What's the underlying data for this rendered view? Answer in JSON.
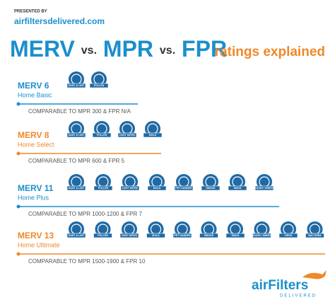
{
  "header": {
    "presented_by": "PRESENTED BY",
    "brand": "airfiltersdelivered.com"
  },
  "title": {
    "merv": "MERV",
    "vs1": "vs.",
    "mpr": "MPR",
    "vs2": "vs.",
    "fpr": "FPR",
    "tagline": "ratings explained"
  },
  "rows": [
    {
      "name": "MERV 6",
      "subtitle": "Home Basic",
      "color": "#1b8fcc",
      "filters": [
        "DUST & LINT",
        "POLLEN"
      ],
      "comparable": "COMPARABLE TO MPR 300 & FPR N/A"
    },
    {
      "name": "MERV 8",
      "subtitle": "Home Select",
      "color": "#f0882a",
      "filters": [
        "DUST & LINT",
        "POLLEN",
        "DUST MITES",
        "MOLD"
      ],
      "comparable": "COMPARABLE TO MPR 600 & FPR 5"
    },
    {
      "name": "MERV 11",
      "subtitle": "Home Plus",
      "color": "#1b8fcc",
      "filters": [
        "DUST & LINT",
        "POLLEN",
        "DUST MITES",
        "MOLD",
        "PET DANDER",
        "SMOKE",
        "SMOG",
        "COUGH / SNEEZE"
      ],
      "comparable": "COMPARABLE TO MPR 1000-1200 & FPR 7"
    },
    {
      "name": "MERV 13",
      "subtitle": "Home Ultimate",
      "color": "#f0882a",
      "filters": [
        "DUST & LINT",
        "POLLEN",
        "DUST MITES",
        "MOLD",
        "PET DANDER",
        "SMOKE",
        "SMOG",
        "COUGH / SNEEZE",
        "VIRUS",
        "BACTERIA"
      ],
      "comparable": "COMPARABLE TO MPR 1500-1900 & FPR 10"
    }
  ],
  "footer": {
    "logo": "airFilters",
    "logo_sub": "DELIVERED"
  }
}
